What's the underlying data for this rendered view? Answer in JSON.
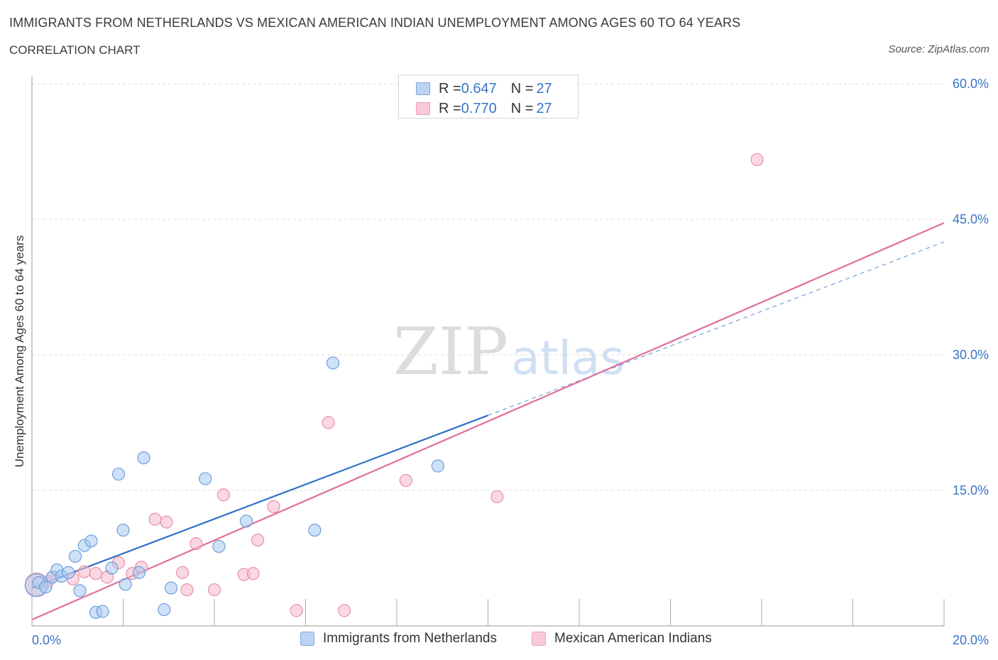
{
  "header": {
    "title": "IMMIGRANTS FROM NETHERLANDS VS MEXICAN AMERICAN INDIAN UNEMPLOYMENT AMONG AGES 60 TO 64 YEARS",
    "subtitle": "CORRELATION CHART",
    "source": "Source: ZipAtlas.com"
  },
  "watermark": {
    "zip": "ZIP",
    "atlas": "atlas"
  },
  "stats_legend": {
    "rows": [
      {
        "r_label": "R = ",
        "r_value": "0.647",
        "n_label": "N = ",
        "n_value": "27",
        "color": "#a8c8f0"
      },
      {
        "r_label": "R = ",
        "r_value": "0.770",
        "n_label": "N = ",
        "n_value": "27",
        "color": "#f6b8cb"
      }
    ]
  },
  "colors": {
    "blue_fill": "#a8c8f0",
    "blue_stroke": "#6f9fdc",
    "blue_line": "#2f72c8",
    "pink_fill": "#f6b8cb",
    "pink_stroke": "#e88fab",
    "pink_line": "#e06f98",
    "tick_text": "#3a74c4",
    "grid": "#dddddd"
  },
  "chart_data": {
    "type": "scatter",
    "title": "IMMIGRANTS FROM NETHERLANDS VS MEXICAN AMERICAN INDIAN UNEMPLOYMENT AMONG AGES 60 TO 64 YEARS",
    "xlabel": "",
    "ylabel": "Unemployment Among Ages 60 to 64 years",
    "xlim": [
      0,
      20
    ],
    "ylim": [
      0,
      60
    ],
    "x_ticks": [
      0,
      20
    ],
    "x_tick_labels": [
      "0.0%",
      "20.0%"
    ],
    "y_ticks": [
      15,
      30,
      45,
      60
    ],
    "y_tick_labels": [
      "15.0%",
      "30.0%",
      "45.0%",
      "60.0%"
    ],
    "grid": true,
    "legend_position": "bottom-center",
    "series": [
      {
        "name": "Immigrants from Netherlands",
        "r": 0.647,
        "n": 27,
        "points": [
          [
            0.1,
            4.5,
            "large"
          ],
          [
            0.15,
            4.8
          ],
          [
            0.3,
            4.3
          ],
          [
            0.45,
            5.4
          ],
          [
            0.55,
            6.2
          ],
          [
            0.65,
            5.5
          ],
          [
            0.8,
            5.9
          ],
          [
            0.95,
            7.7
          ],
          [
            1.05,
            3.9
          ],
          [
            1.15,
            8.9
          ],
          [
            1.3,
            9.4
          ],
          [
            1.4,
            1.5
          ],
          [
            1.55,
            1.6
          ],
          [
            1.75,
            6.4
          ],
          [
            1.9,
            16.8
          ],
          [
            2.0,
            10.6
          ],
          [
            2.05,
            4.6
          ],
          [
            2.35,
            5.9
          ],
          [
            2.45,
            18.6
          ],
          [
            2.9,
            1.8
          ],
          [
            3.05,
            4.2
          ],
          [
            3.8,
            16.3
          ],
          [
            4.1,
            8.8
          ],
          [
            4.7,
            11.6
          ],
          [
            6.2,
            10.6
          ],
          [
            6.6,
            29.1
          ],
          [
            8.9,
            17.7
          ]
        ],
        "trend": {
          "x1": 0,
          "y1": 4.2,
          "x2": 10.0,
          "y2": 23.3,
          "dashed_to_x": 20.0,
          "dashed_to_y": 42.5
        }
      },
      {
        "name": "Mexican American Indians",
        "r": 0.77,
        "n": 27,
        "points": [
          [
            0.1,
            4.6,
            "large"
          ],
          [
            0.35,
            4.9
          ],
          [
            0.45,
            5.4
          ],
          [
            0.9,
            5.2
          ],
          [
            1.15,
            6.0
          ],
          [
            1.4,
            5.8
          ],
          [
            1.65,
            5.4
          ],
          [
            1.9,
            7.0
          ],
          [
            2.2,
            5.8
          ],
          [
            2.4,
            6.5
          ],
          [
            2.7,
            11.8
          ],
          [
            2.95,
            11.5
          ],
          [
            3.3,
            5.9
          ],
          [
            3.4,
            4.0
          ],
          [
            3.6,
            9.1
          ],
          [
            4.0,
            4.0
          ],
          [
            4.2,
            14.5
          ],
          [
            4.65,
            5.7
          ],
          [
            4.85,
            5.8
          ],
          [
            4.95,
            9.5
          ],
          [
            5.3,
            13.2
          ],
          [
            5.8,
            1.7
          ],
          [
            6.5,
            22.5
          ],
          [
            6.85,
            1.7
          ],
          [
            8.2,
            16.1
          ],
          [
            10.2,
            14.3
          ],
          [
            15.9,
            51.6
          ]
        ],
        "trend": {
          "x1": 0,
          "y1": 0.7,
          "x2": 20.0,
          "y2": 44.6
        }
      }
    ]
  },
  "bottom_legend": {
    "items": [
      {
        "label": "Immigrants from Netherlands",
        "color": "#a8c8f0"
      },
      {
        "label": "Mexican American Indians",
        "color": "#f6b8cb"
      }
    ]
  }
}
